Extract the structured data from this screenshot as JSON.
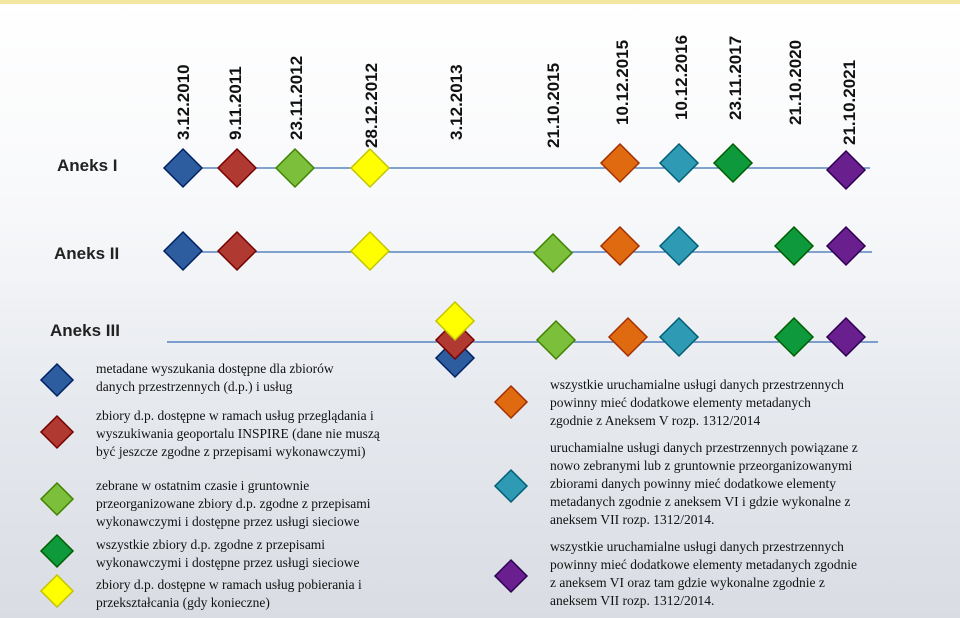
{
  "dates": [
    "3.12.2010",
    "9.11.2011",
    "23.11.2012",
    "28.12.2012",
    "3.12.2013",
    "21.10.2015",
    "10.12.2015",
    "10.12.2016",
    "23.11.2017",
    "21.10.2020",
    "21.10.2021"
  ],
  "rows": [
    {
      "label": "Aneks I",
      "markers": [
        {
          "color": "#2e5d9f"
        },
        {
          "color": "#b03a32"
        },
        {
          "color": "#7cbf3b"
        },
        {
          "color": "#ffff00"
        },
        {
          "color": "#e06a10"
        },
        {
          "color": "#2f9ab3"
        },
        {
          "color": "#0e9a3c"
        },
        {
          "color": "#6a1f8f"
        }
      ]
    },
    {
      "label": "Aneks II",
      "markers": [
        {
          "color": "#2e5d9f"
        },
        {
          "color": "#b03a32"
        },
        {
          "color": "#ffff00"
        },
        {
          "color": "#7cbf3b"
        },
        {
          "color": "#e06a10"
        },
        {
          "color": "#2f9ab3"
        },
        {
          "color": "#0e9a3c"
        },
        {
          "color": "#6a1f8f"
        }
      ]
    },
    {
      "label": "Aneks III",
      "markers": [
        {
          "color": "#2e5d9f"
        },
        {
          "color": "#b03a32"
        },
        {
          "color": "#ffff00"
        },
        {
          "color": "#7cbf3b"
        },
        {
          "color": "#e06a10"
        },
        {
          "color": "#2f9ab3"
        },
        {
          "color": "#0e9a3c"
        },
        {
          "color": "#6a1f8f"
        }
      ]
    }
  ],
  "legend_left": [
    {
      "color": "#2e5d9f",
      "lines": [
        "metadane wyszukania dostępne dla zbiorów",
        "danych przestrzennych (d.p.) i usług"
      ]
    },
    {
      "color": "#b03a32",
      "lines": [
        "zbiory d.p. dostępne w ramach usług przeglądania i",
        "wyszukiwania geoportalu INSPIRE (dane nie muszą",
        "być jeszcze zgodne z przepisami wykonawczymi)"
      ]
    },
    {
      "color": "#7cbf3b",
      "lines": [
        "zebrane w ostatnim czasie i gruntownie",
        "przeorganizowane zbiory d.p. zgodne z przepisami",
        "wykonawczymi i dostępne przez usługi sieciowe"
      ]
    },
    {
      "color": "#0e9a3c",
      "lines": [
        "wszystkie zbiory d.p. zgodne z przepisami",
        "wykonawczymi i dostępne przez usługi sieciowe"
      ]
    },
    {
      "color": "#ffff00",
      "lines": [
        "zbiory d.p. dostępne w ramach usług pobierania i",
        "przekształcania (gdy konieczne)"
      ]
    }
  ],
  "legend_right": [
    {
      "color": "#e06a10",
      "lines": [
        "wszystkie uruchamialne usługi danych przestrzennych",
        "powinny mieć dodatkowe elementy metadanych",
        "zgodnie z Aneksem V rozp. 1312/2014"
      ]
    },
    {
      "color": "#2f9ab3",
      "lines": [
        "uruchamialne usługi danych przestrzennych powiązane z",
        "nowo zebranymi lub z gruntownie przeorganizowanymi",
        "zbiorami danych powinny mieć dodatkowe elementy",
        "metadanych zgodnie z aneksem VI i gdzie wykonalne z",
        "aneksem VII rozp. 1312/2014."
      ]
    },
    {
      "color": "#6a1f8f",
      "lines": [
        "wszystkie uruchamialne usługi danych przestrzennych",
        "powinny mieć dodatkowe elementy metadanych zgodnie",
        "z aneksem VI oraz tam gdzie wykonalne zgodnie z",
        "aneksem VII  rozp. 1312/2014."
      ]
    }
  ]
}
